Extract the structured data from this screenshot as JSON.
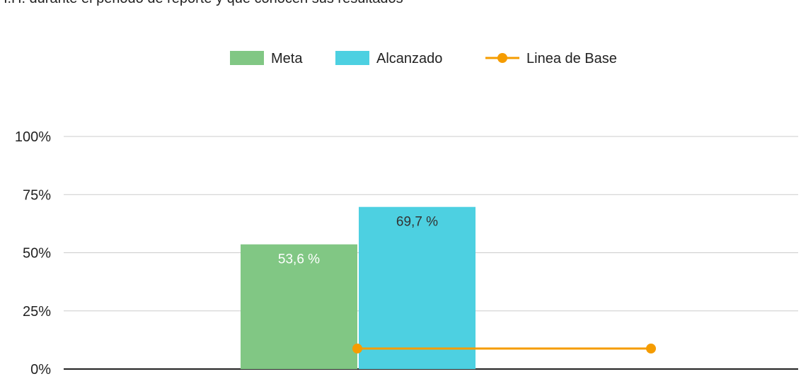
{
  "chart_data": {
    "type": "bar",
    "title": "H.H. durante el periodo de reporte y que conocen sus resultados",
    "ylim": [
      0,
      100
    ],
    "yticks": [
      {
        "value": 0,
        "label": "0%"
      },
      {
        "value": 25,
        "label": "25%"
      },
      {
        "value": 50,
        "label": "50%"
      },
      {
        "value": 75,
        "label": "75%"
      },
      {
        "value": 100,
        "label": "100%"
      }
    ],
    "grid": true,
    "legend": "top",
    "series": [
      {
        "name": "Meta",
        "type": "bar",
        "color": "#81c784",
        "values": [
          53.6
        ],
        "value_labels": [
          "53,6 %"
        ]
      },
      {
        "name": "Alcanzado",
        "type": "bar",
        "color": "#4dd0e1",
        "values": [
          69.7
        ],
        "value_labels": [
          "69,7 %"
        ]
      },
      {
        "name": "Linea de Base",
        "type": "line",
        "color": "#f59c00",
        "values": [
          8.8,
          8.8
        ]
      }
    ]
  }
}
